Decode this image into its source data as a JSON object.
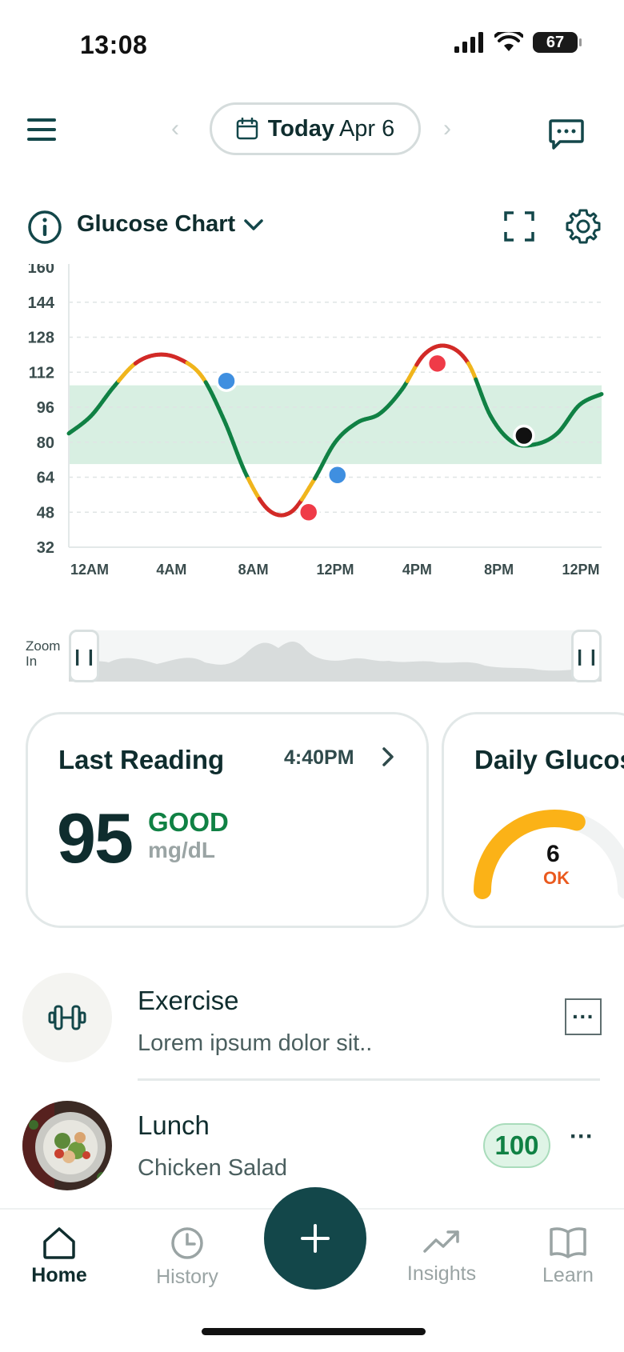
{
  "status_bar": {
    "time": "13:08",
    "battery": "67"
  },
  "header": {
    "today_label": "Today",
    "date_label": "Apr 6"
  },
  "chart_header": {
    "title": "Glucose Chart"
  },
  "chart_data": {
    "type": "line",
    "y_ticks": [
      160,
      144,
      128,
      112,
      96,
      80,
      64,
      48,
      32
    ],
    "ylim": [
      32,
      160
    ],
    "x_ticks": [
      "12AM",
      "4AM",
      "8AM",
      "12PM",
      "4PM",
      "8PM",
      "12PM"
    ],
    "xlim": [
      0,
      24
    ],
    "target_range": [
      70,
      106
    ],
    "series": [
      {
        "x": [
          0,
          1,
          2,
          3,
          4,
          5,
          6,
          7,
          8,
          9,
          10,
          11,
          12,
          13,
          14,
          15,
          16,
          17,
          18,
          19,
          20,
          21,
          22,
          23,
          24
        ],
        "values": [
          84,
          92,
          105,
          116,
          120,
          118,
          110,
          90,
          65,
          49,
          48,
          62,
          80,
          89,
          93,
          104,
          120,
          124,
          116,
          92,
          80,
          79,
          84,
          97,
          102
        ]
      }
    ],
    "markers": [
      {
        "x": 7.1,
        "y": 108,
        "color": "#3f8fe0"
      },
      {
        "x": 10.8,
        "y": 48,
        "color": "#ef3b48"
      },
      {
        "x": 12.1,
        "y": 65,
        "color": "#3f8fe0"
      },
      {
        "x": 16.6,
        "y": 116,
        "color": "#ef3b48"
      },
      {
        "x": 20.5,
        "y": 83,
        "color": "#111111"
      }
    ],
    "colors": {
      "in_range": "#108144",
      "warning": "#f0b51c",
      "out_of_range": "#d22a27",
      "target_band": "#d8efe2"
    }
  },
  "zoom": {
    "label_line1": "Zoom",
    "label_line2": "In"
  },
  "last_reading": {
    "title": "Last Reading",
    "time": "4:40PM",
    "value": "95",
    "status": "GOOD",
    "unit": "mg/dL"
  },
  "daily_glucose": {
    "title": "Daily Glucose",
    "value": "6",
    "status": "OK",
    "gauge_fraction": 0.6
  },
  "feed": [
    {
      "title": "Exercise",
      "subtitle": "Lorem ipsum dolor sit..",
      "icon": "dumbbell-icon"
    },
    {
      "title": "Lunch",
      "subtitle": "Chicken Salad",
      "score": "100"
    }
  ],
  "tabs": [
    {
      "label": "Home",
      "icon": "home-icon",
      "active": true
    },
    {
      "label": "History",
      "icon": "clock-icon",
      "active": false
    },
    {
      "label": "Insights",
      "icon": "trend-icon",
      "active": false
    },
    {
      "label": "Learn",
      "icon": "book-icon",
      "active": false
    }
  ]
}
